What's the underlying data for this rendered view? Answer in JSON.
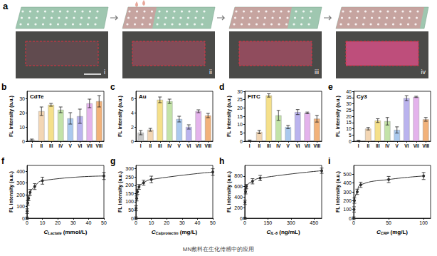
{
  "figure": {
    "panel": "a",
    "steps": [
      "i",
      "ii",
      "iii",
      "iv"
    ],
    "caption": "MN敷料在生化传感中的应用"
  },
  "chart_data": [
    {
      "type": "bar",
      "panel": "b",
      "title": "CdTe",
      "ylabel": "FL intensity (a.u.)",
      "categories": [
        "I",
        "II",
        "III",
        "IV",
        "V",
        "VI",
        "VII",
        "VIII"
      ],
      "values": [
        1,
        21,
        25.5,
        22,
        16,
        17.5,
        26.5,
        28
      ],
      "errors": [
        0.5,
        3,
        1,
        2,
        4,
        5,
        3,
        4
      ],
      "colors": [
        "#c8c8c8",
        "#f3d6b4",
        "#f5e08a",
        "#c3e3a8",
        "#aac9ee",
        "#bab3ee",
        "#e4b3ec",
        "#f2b27a"
      ],
      "ylim": [
        0,
        35
      ],
      "yticks": [
        0,
        10,
        20,
        30
      ]
    },
    {
      "type": "bar",
      "panel": "c",
      "title": "Au",
      "ylabel": "FL intensity (a.u.)",
      "categories": [
        "I",
        "II",
        "III",
        "IV",
        "V",
        "VI",
        "VII",
        "VIII"
      ],
      "values": [
        1.2,
        1.6,
        5.8,
        5.6,
        3.1,
        2.0,
        4.2,
        3.6
      ],
      "errors": [
        0.3,
        0.2,
        0.4,
        0.3,
        0.4,
        0.3,
        0.2,
        0.3
      ],
      "colors": [
        "#c8c8c8",
        "#f3d6b4",
        "#f5e08a",
        "#c3e3a8",
        "#aac9ee",
        "#bab3ee",
        "#e4b3ec",
        "#f2b27a"
      ],
      "ylim": [
        0,
        7
      ],
      "yticks": [
        0,
        2,
        4,
        6
      ]
    },
    {
      "type": "bar",
      "panel": "d",
      "title": "FITC",
      "ylabel": "FL intensity (a.u.)",
      "categories": [
        "I",
        "II",
        "III",
        "IV",
        "V",
        "VI",
        "VII",
        "VIII"
      ],
      "values": [
        0.5,
        5.5,
        27.5,
        15.5,
        8.5,
        17.5,
        17,
        13.5
      ],
      "errors": [
        0.2,
        1,
        1,
        3,
        1,
        1.5,
        0.5,
        2
      ],
      "colors": [
        "#c8c8c8",
        "#f3d6b4",
        "#f5e08a",
        "#c3e3a8",
        "#aac9ee",
        "#bab3ee",
        "#e4b3ec",
        "#f2b27a"
      ],
      "ylim": [
        0,
        30
      ],
      "yticks": [
        0,
        5,
        10,
        15,
        20,
        25,
        30
      ]
    },
    {
      "type": "bar",
      "panel": "e",
      "title": "Cy3",
      "ylabel": "FL intensity (a.u.)",
      "categories": [
        "I",
        "II",
        "III",
        "IV",
        "V",
        "VI",
        "VII",
        "VIII"
      ],
      "values": [
        0.5,
        10,
        16.5,
        16,
        9,
        34.5,
        35.5,
        17.5
      ],
      "errors": [
        0.2,
        1,
        1.5,
        3,
        2.5,
        2,
        0.5,
        1.5
      ],
      "colors": [
        "#c8c8c8",
        "#f3d6b4",
        "#f5e08a",
        "#c3e3a8",
        "#aac9ee",
        "#bab3ee",
        "#e4b3ec",
        "#f2b27a"
      ],
      "ylim": [
        0,
        40
      ],
      "yticks": [
        0,
        5,
        10,
        15,
        20,
        25,
        30,
        35,
        40
      ]
    },
    {
      "type": "line",
      "panel": "f",
      "ylabel": "FL intensity (a.u.)",
      "xlabel": "C",
      "xlabel_sub": "Lactate",
      "xlabel_unit": " (mmol/L)",
      "x": [
        0,
        0.1,
        0.5,
        1,
        2,
        5,
        10,
        50
      ],
      "values": [
        0,
        60,
        130,
        170,
        220,
        270,
        320,
        360
      ],
      "errors": [
        10,
        20,
        20,
        20,
        25,
        25,
        30,
        30
      ],
      "color": "#333333",
      "marker": "circle",
      "xlim": [
        0,
        50
      ],
      "xticks": [
        0,
        10,
        20,
        30,
        40,
        50
      ],
      "ylim": [
        0,
        450
      ],
      "yticks": [
        0,
        100,
        200,
        300,
        400
      ]
    },
    {
      "type": "line",
      "panel": "g",
      "ylabel": "FL intensity (a.u.)",
      "xlabel": "C",
      "xlabel_sub": "Calprotectin",
      "xlabel_unit": " (mg/L)",
      "x": [
        0,
        0.1,
        0.5,
        1,
        2,
        5,
        10,
        50
      ],
      "values": [
        0,
        60,
        120,
        160,
        190,
        215,
        235,
        280
      ],
      "errors": [
        8,
        15,
        15,
        15,
        15,
        15,
        20,
        20
      ],
      "color": "#333333",
      "marker": "circle",
      "xlim": [
        0,
        50
      ],
      "xticks": [
        0,
        10,
        20,
        30,
        40,
        50
      ],
      "ylim": [
        0,
        320
      ],
      "yticks": [
        0,
        50,
        100,
        150,
        200,
        250,
        300
      ]
    },
    {
      "type": "line",
      "panel": "h",
      "ylabel": "FL intensity (a.u.)",
      "xlabel": "C",
      "xlabel_sub": "IL-6",
      "xlabel_unit": " (ng/mL)",
      "x": [
        0,
        1,
        5,
        10,
        50,
        100,
        500
      ],
      "values": [
        0,
        300,
        500,
        600,
        700,
        760,
        900
      ],
      "errors": [
        20,
        40,
        40,
        40,
        50,
        50,
        50
      ],
      "color": "#333333",
      "marker": "circle",
      "xlim": [
        0,
        500
      ],
      "xticks": [
        0,
        150,
        300,
        450
      ],
      "ylim": [
        0,
        1000
      ],
      "yticks": [
        0,
        200,
        400,
        600,
        800
      ]
    },
    {
      "type": "line",
      "panel": "i",
      "ylabel": "FL intensity (a.u.)",
      "xlabel": "C",
      "xlabel_sub": "CRP",
      "xlabel_unit": " (mg/L)",
      "x": [
        0,
        0.5,
        1,
        5,
        10,
        50,
        100
      ],
      "values": [
        0,
        100,
        200,
        300,
        380,
        440,
        480
      ],
      "errors": [
        15,
        30,
        30,
        30,
        30,
        35,
        40
      ],
      "color": "#333333",
      "marker": "circle",
      "xlim": [
        0,
        110
      ],
      "xticks": [
        0,
        50,
        100
      ],
      "ylim": [
        0,
        600
      ],
      "yticks": [
        0,
        100,
        200,
        300,
        400,
        500
      ]
    }
  ]
}
